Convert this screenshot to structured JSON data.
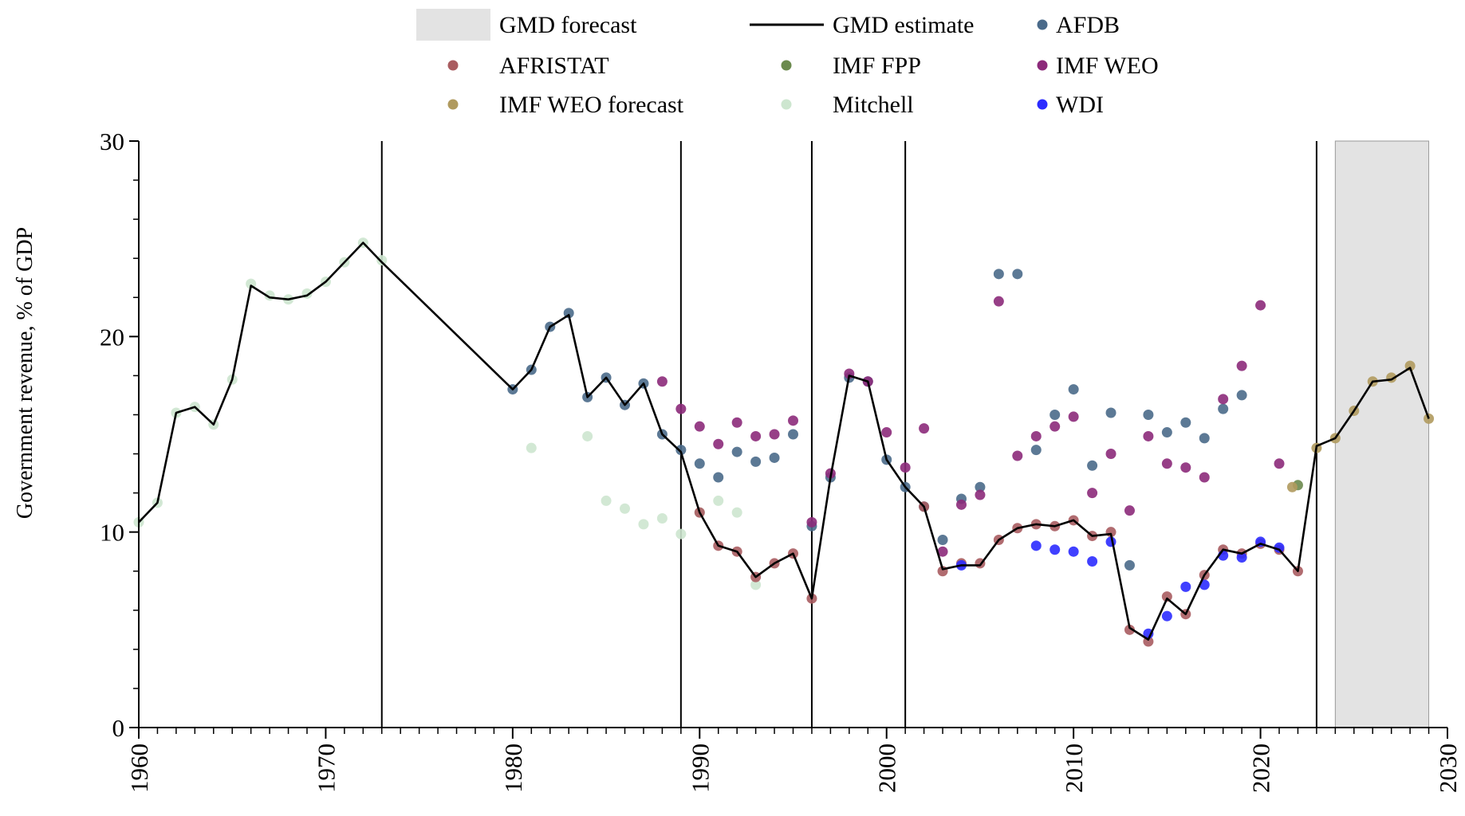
{
  "chart_data": {
    "type": "line",
    "ylabel": "Government revenue, % of GDP",
    "xlim": [
      1960,
      2030
    ],
    "ylim": [
      0,
      30
    ],
    "x_ticks": [
      "1960",
      "1970",
      "1980",
      "1990",
      "2000",
      "2010",
      "2020",
      "2030"
    ],
    "y_ticks": [
      "0",
      "10",
      "20",
      "30"
    ],
    "grid": false,
    "legend_position": "top-center",
    "legend": [
      {
        "key": "forecast_band",
        "label": "GMD forecast",
        "kind": "band",
        "color": "#e3e3e3"
      },
      {
        "key": "estimate",
        "label": "GMD estimate",
        "kind": "line",
        "color": "#000000"
      },
      {
        "key": "afdb",
        "label": "AFDB",
        "kind": "dot",
        "color": "#4a6a8a"
      },
      {
        "key": "afristat",
        "label": "AFRISTAT",
        "kind": "dot",
        "color": "#a95c60"
      },
      {
        "key": "imf_fpp",
        "label": "IMF FPP",
        "kind": "dot",
        "color": "#6b8a4e"
      },
      {
        "key": "imf_weo",
        "label": "IMF WEO",
        "kind": "dot",
        "color": "#8c2a7a"
      },
      {
        "key": "imf_weo_forecast",
        "label": "IMF WEO forecast",
        "kind": "dot",
        "color": "#b09a5e"
      },
      {
        "key": "mitchell",
        "label": "Mitchell",
        "kind": "dot",
        "color": "#cde6cf"
      },
      {
        "key": "wdi",
        "label": "WDI",
        "kind": "dot",
        "color": "#2b2bff"
      }
    ],
    "forecast_band": [
      2024,
      2029
    ],
    "vertical_lines": [
      1973,
      1989,
      1996,
      2001,
      2023
    ],
    "estimate": {
      "x": [
        1960,
        1961,
        1962,
        1963,
        1964,
        1965,
        1966,
        1967,
        1968,
        1969,
        1970,
        1971,
        1972,
        1973,
        1980,
        1981,
        1982,
        1983,
        1984,
        1985,
        1986,
        1987,
        1988,
        1989,
        1990,
        1991,
        1992,
        1993,
        1994,
        1995,
        1996,
        1997,
        1998,
        1999,
        2000,
        2001,
        2002,
        2003,
        2004,
        2005,
        2006,
        2007,
        2008,
        2009,
        2010,
        2011,
        2012,
        2013,
        2014,
        2015,
        2016,
        2017,
        2018,
        2019,
        2020,
        2021,
        2022,
        2023,
        2024,
        2025,
        2026,
        2027,
        2028,
        2029
      ],
      "y": [
        10.5,
        11.5,
        16.1,
        16.4,
        15.5,
        17.8,
        22.6,
        22.0,
        21.9,
        22.1,
        22.8,
        23.8,
        24.8,
        23.8,
        17.3,
        18.3,
        20.5,
        21.1,
        16.9,
        17.9,
        16.5,
        17.6,
        15.0,
        14.1,
        11.0,
        9.3,
        9.0,
        7.7,
        8.4,
        8.9,
        6.6,
        12.8,
        18.0,
        17.7,
        13.7,
        12.3,
        11.3,
        8.1,
        8.3,
        8.3,
        9.6,
        10.2,
        10.4,
        10.3,
        10.6,
        9.8,
        9.9,
        5.1,
        4.5,
        6.6,
        5.8,
        7.8,
        9.1,
        8.9,
        9.4,
        9.1,
        8.0,
        14.4,
        14.8,
        16.2,
        17.7,
        17.8,
        18.4,
        15.8
      ]
    },
    "series": [
      {
        "key": "mitchell",
        "x": [
          1960,
          1961,
          1962,
          1963,
          1964,
          1965,
          1966,
          1967,
          1968,
          1969,
          1970,
          1971,
          1972,
          1973,
          1981,
          1984,
          1985,
          1986,
          1987,
          1988,
          1989,
          1990,
          1991,
          1992,
          1993
        ],
        "y": [
          10.5,
          11.5,
          16.1,
          16.4,
          15.5,
          17.8,
          22.7,
          22.1,
          21.9,
          22.2,
          22.8,
          23.8,
          24.8,
          23.9,
          14.3,
          14.9,
          11.6,
          11.2,
          10.4,
          10.7,
          9.9,
          11.0,
          11.6,
          11.0,
          7.3
        ]
      },
      {
        "key": "afdb",
        "x": [
          1980,
          1981,
          1982,
          1983,
          1984,
          1985,
          1986,
          1987,
          1988,
          1989,
          1990,
          1991,
          1992,
          1993,
          1994,
          1995,
          1996,
          1997,
          1998,
          1999,
          2000,
          2001,
          2002,
          2003,
          2004,
          2005,
          2006,
          2007,
          2008,
          2009,
          2010,
          2011,
          2012,
          2013,
          2014,
          2015,
          2016,
          2017,
          2018,
          2019
        ],
        "y": [
          17.3,
          18.3,
          20.5,
          21.2,
          16.9,
          17.9,
          16.5,
          17.6,
          15.0,
          14.2,
          13.5,
          12.8,
          14.1,
          13.6,
          13.8,
          15.0,
          10.3,
          12.8,
          17.9,
          17.7,
          13.7,
          12.3,
          11.3,
          9.6,
          11.7,
          12.3,
          23.2,
          23.2,
          14.2,
          16.0,
          17.3,
          13.4,
          16.1,
          8.3,
          16.0,
          15.1,
          15.6,
          14.8,
          16.3,
          17.0
        ]
      },
      {
        "key": "imf_weo",
        "x": [
          1988,
          1989,
          1990,
          1991,
          1992,
          1993,
          1994,
          1995,
          1996,
          1997,
          1998,
          1999,
          2000,
          2001,
          2002,
          2003,
          2004,
          2005,
          2006,
          2007,
          2008,
          2009,
          2010,
          2011,
          2012,
          2013,
          2014,
          2015,
          2016,
          2017,
          2018,
          2019,
          2020,
          2021
        ],
        "y": [
          17.7,
          16.3,
          15.4,
          14.5,
          15.6,
          14.9,
          15.0,
          15.7,
          10.5,
          13.0,
          18.1,
          17.7,
          15.1,
          13.3,
          15.3,
          9.0,
          11.4,
          11.9,
          21.8,
          13.9,
          14.9,
          15.4,
          15.9,
          12.0,
          14.0,
          11.1,
          14.9,
          13.5,
          13.3,
          12.8,
          16.8,
          18.5,
          21.6,
          13.5
        ]
      },
      {
        "key": "afristat",
        "x": [
          1990,
          1991,
          1992,
          1993,
          1994,
          1995,
          1996,
          2002,
          2003,
          2004,
          2005,
          2006,
          2007,
          2008,
          2009,
          2010,
          2011,
          2012,
          2013,
          2014,
          2015,
          2016,
          2017,
          2018,
          2019,
          2020,
          2021,
          2022
        ],
        "y": [
          11.0,
          9.3,
          9.0,
          7.7,
          8.4,
          8.9,
          6.6,
          11.3,
          8.0,
          8.4,
          8.4,
          9.6,
          10.2,
          10.4,
          10.3,
          10.6,
          9.8,
          10.0,
          5.0,
          4.4,
          6.7,
          5.8,
          7.8,
          9.1,
          8.9,
          9.4,
          9.1,
          8.0
        ]
      },
      {
        "key": "wdi",
        "x": [
          2004,
          2008,
          2009,
          2010,
          2011,
          2012,
          2014,
          2015,
          2016,
          2017,
          2018,
          2019,
          2020,
          2021
        ],
        "y": [
          8.3,
          9.3,
          9.1,
          9.0,
          8.5,
          9.5,
          4.8,
          5.7,
          7.2,
          7.3,
          8.8,
          8.7,
          9.5,
          9.2
        ]
      },
      {
        "key": "imf_fpp",
        "x": [
          2022
        ],
        "y": [
          12.4
        ]
      },
      {
        "key": "imf_weo_forecast",
        "x": [
          2021.7,
          2023,
          2024,
          2025,
          2026,
          2027,
          2028,
          2029
        ],
        "y": [
          12.3,
          14.3,
          14.8,
          16.2,
          17.7,
          17.9,
          18.5,
          15.8
        ]
      }
    ]
  }
}
